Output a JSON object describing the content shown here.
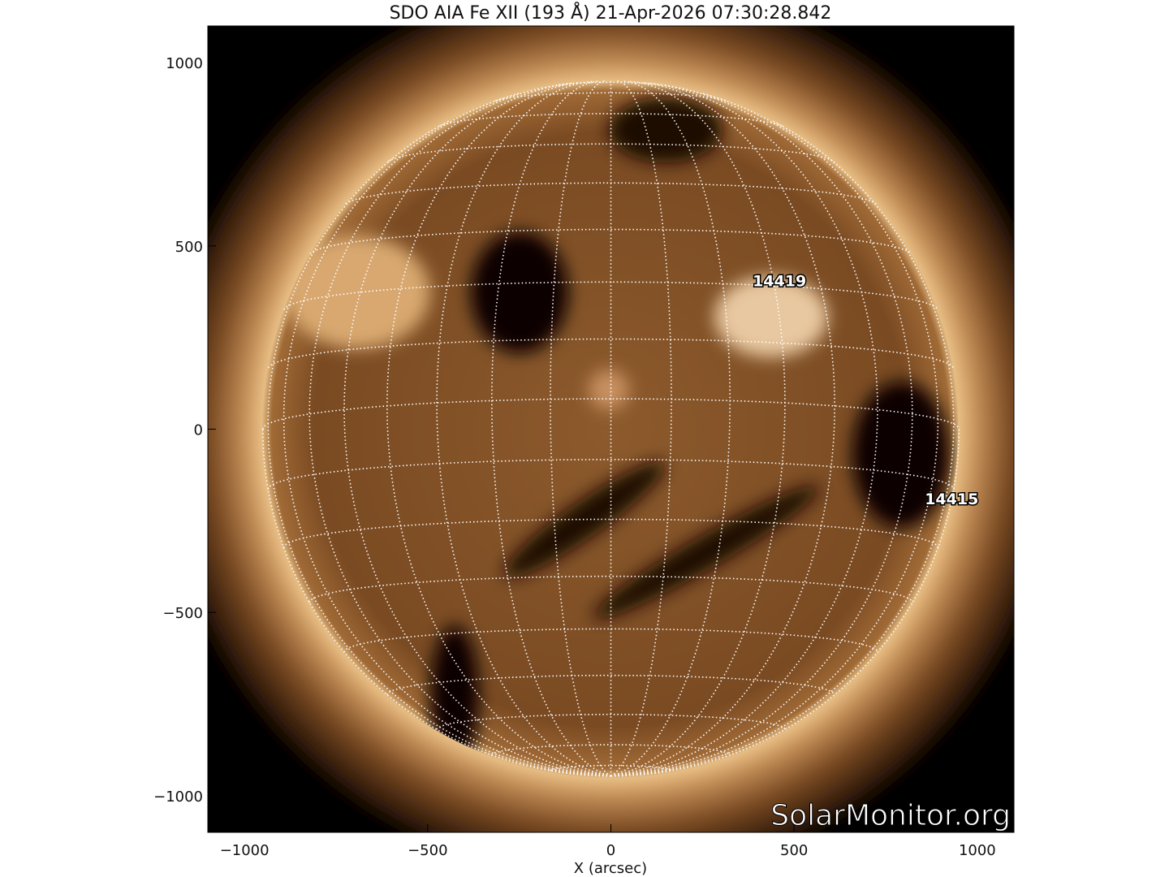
{
  "title": "SDO AIA Fe XII (193 Å) 21-Apr-2026 07:30:28.842",
  "x_axis": {
    "label": "X (arcsec)",
    "ticks": [
      -1000,
      -500,
      0,
      500,
      1000
    ],
    "range": [
      -1100,
      1100
    ]
  },
  "y_axis": {
    "label": "",
    "ticks": [
      -1000,
      -500,
      0,
      500,
      1000
    ],
    "range": [
      -1100,
      1100
    ]
  },
  "solar_radius_arcsec": 950,
  "grid": {
    "spacing_deg": 10,
    "style": "dotted",
    "color": "#ffffff"
  },
  "active_regions": [
    {
      "label": "14419",
      "x": 460,
      "y": 390
    },
    {
      "label": "14415",
      "x": 930,
      "y": -205
    }
  ],
  "watermark": "SolarMonitor.org",
  "colors": {
    "background": "#000000",
    "disk": "#7a4a22",
    "corona": "#c8925a",
    "grid": "#ffffff"
  }
}
